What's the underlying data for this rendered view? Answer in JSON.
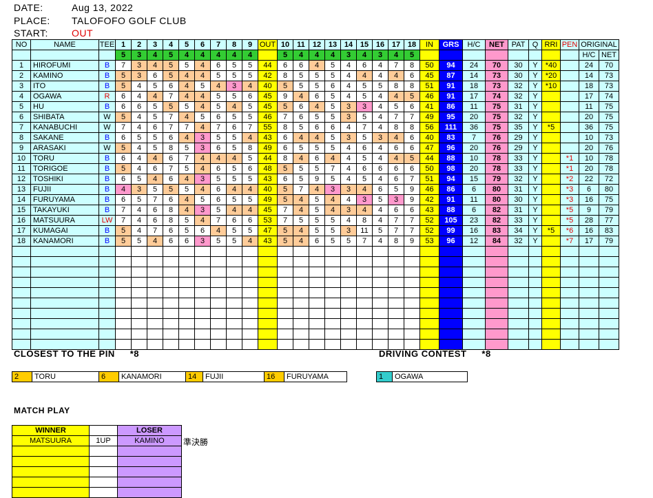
{
  "header": {
    "date_label": "DATE:",
    "date_value": "Aug 13, 2022",
    "place_label": "PLACE:",
    "place_value": "TALOFOFO GOLF CLUB",
    "start_label": "START:",
    "start_value": "OUT"
  },
  "colors": {
    "cyan": "#ccffff",
    "yellow": "#ffff00",
    "blue": "#0000ff",
    "pink": "#ff99cc",
    "green": "#33cc33",
    "orange": "#ffcc99"
  },
  "table": {
    "headers": {
      "no": "NO",
      "name": "NAME",
      "tee": "TEE",
      "holes": [
        "1",
        "2",
        "3",
        "4",
        "5",
        "6",
        "7",
        "8",
        "9",
        "OUT",
        "10",
        "11",
        "12",
        "13",
        "14",
        "15",
        "16",
        "17",
        "18",
        "IN"
      ],
      "grs": "GRS",
      "hc": "H/C",
      "net": "NET",
      "pat": "PAT",
      "q": "Q",
      "rri": "RRI",
      "pen": "PEN",
      "original": "ORIGINAL",
      "orig_hc": "H/C",
      "orig_net": "NET"
    },
    "par": [
      "5",
      "3",
      "4",
      "5",
      "4",
      "4",
      "4",
      "4",
      "4",
      "",
      "5",
      "4",
      "4",
      "4",
      "3",
      "4",
      "3",
      "4",
      "5",
      ""
    ],
    "rows": [
      {
        "no": "1",
        "name": "HIROFUMI",
        "tee": "B",
        "s": [
          "7",
          "3",
          "4",
          "5",
          "5",
          "4",
          "6",
          "5",
          "5",
          "44",
          "6",
          "6",
          "4",
          "5",
          "4",
          "6",
          "4",
          "7",
          "8",
          "50"
        ],
        "grs": "94",
        "hc": "24",
        "net": "70",
        "pat": "30",
        "q": "Y",
        "rri": "*40",
        "pen": "",
        "oh": "24",
        "on": "70"
      },
      {
        "no": "2",
        "name": "KAMINO",
        "tee": "B",
        "s": [
          "5",
          "3",
          "6",
          "5",
          "4",
          "4",
          "5",
          "5",
          "5",
          "42",
          "8",
          "5",
          "5",
          "5",
          "4",
          "4",
          "4",
          "4",
          "6",
          "45"
        ],
        "grs": "87",
        "hc": "14",
        "net": "73",
        "pat": "30",
        "q": "Y",
        "rri": "*20",
        "pen": "",
        "oh": "14",
        "on": "73"
      },
      {
        "no": "3",
        "name": "ITO",
        "tee": "B",
        "s": [
          "5",
          "4",
          "5",
          "6",
          "4",
          "5",
          "4",
          "3",
          "4",
          "40",
          "5",
          "5",
          "5",
          "6",
          "4",
          "5",
          "5",
          "8",
          "8",
          "51"
        ],
        "grs": "91",
        "hc": "18",
        "net": "73",
        "pat": "32",
        "q": "Y",
        "rri": "*10",
        "pen": "",
        "oh": "18",
        "on": "73"
      },
      {
        "no": "4",
        "name": "OGAWA",
        "tee": "R",
        "s": [
          "6",
          "4",
          "4",
          "7",
          "4",
          "4",
          "5",
          "5",
          "6",
          "45",
          "9",
          "4",
          "6",
          "5",
          "4",
          "5",
          "4",
          "4",
          "5",
          "46"
        ],
        "grs": "91",
        "hc": "17",
        "net": "74",
        "pat": "32",
        "q": "Y",
        "rri": "",
        "pen": "",
        "oh": "17",
        "on": "74"
      },
      {
        "no": "5",
        "name": "HU",
        "tee": "B",
        "s": [
          "6",
          "6",
          "5",
          "5",
          "5",
          "4",
          "5",
          "4",
          "5",
          "45",
          "5",
          "6",
          "4",
          "5",
          "3",
          "3",
          "4",
          "5",
          "6",
          "41"
        ],
        "grs": "86",
        "hc": "11",
        "net": "75",
        "pat": "31",
        "q": "Y",
        "rri": "",
        "pen": "",
        "oh": "11",
        "on": "75"
      },
      {
        "no": "6",
        "name": "SHIBATA",
        "tee": "W",
        "s": [
          "5",
          "4",
          "5",
          "7",
          "4",
          "5",
          "6",
          "5",
          "5",
          "46",
          "7",
          "6",
          "5",
          "5",
          "3",
          "5",
          "4",
          "7",
          "7",
          "49"
        ],
        "grs": "95",
        "hc": "20",
        "net": "75",
        "pat": "32",
        "q": "Y",
        "rri": "",
        "pen": "",
        "oh": "20",
        "on": "75"
      },
      {
        "no": "7",
        "name": "KANABUCHI",
        "tee": "W",
        "s": [
          "7",
          "4",
          "6",
          "7",
          "7",
          "4",
          "7",
          "6",
          "7",
          "55",
          "8",
          "5",
          "6",
          "6",
          "4",
          "7",
          "4",
          "8",
          "8",
          "56"
        ],
        "grs": "111",
        "hc": "36",
        "net": "75",
        "pat": "35",
        "q": "Y",
        "rri": "*5",
        "pen": "",
        "oh": "36",
        "on": "75"
      },
      {
        "no": "8",
        "name": "SAKANE",
        "tee": "B",
        "s": [
          "6",
          "5",
          "5",
          "6",
          "4",
          "3",
          "5",
          "5",
          "4",
          "43",
          "6",
          "4",
          "4",
          "5",
          "3",
          "5",
          "3",
          "4",
          "6",
          "40"
        ],
        "grs": "83",
        "hc": "7",
        "net": "76",
        "pat": "29",
        "q": "Y",
        "rri": "",
        "pen": "",
        "oh": "10",
        "on": "73"
      },
      {
        "no": "9",
        "name": "ARASAKI",
        "tee": "W",
        "s": [
          "5",
          "4",
          "5",
          "8",
          "5",
          "3",
          "6",
          "5",
          "8",
          "49",
          "6",
          "5",
          "5",
          "5",
          "4",
          "6",
          "4",
          "6",
          "6",
          "47"
        ],
        "grs": "96",
        "hc": "20",
        "net": "76",
        "pat": "29",
        "q": "Y",
        "rri": "",
        "pen": "",
        "oh": "20",
        "on": "76"
      },
      {
        "no": "10",
        "name": "TORU",
        "tee": "B",
        "s": [
          "6",
          "4",
          "4",
          "6",
          "7",
          "4",
          "4",
          "4",
          "5",
          "44",
          "8",
          "4",
          "6",
          "4",
          "4",
          "5",
          "4",
          "4",
          "5",
          "44"
        ],
        "grs": "88",
        "hc": "10",
        "net": "78",
        "pat": "33",
        "q": "Y",
        "rri": "",
        "pen": "*1",
        "oh": "10",
        "on": "78"
      },
      {
        "no": "11",
        "name": "TORIGOE",
        "tee": "B",
        "s": [
          "5",
          "4",
          "6",
          "7",
          "5",
          "4",
          "6",
          "5",
          "6",
          "48",
          "5",
          "5",
          "5",
          "7",
          "4",
          "6",
          "6",
          "6",
          "6",
          "50"
        ],
        "grs": "98",
        "hc": "20",
        "net": "78",
        "pat": "33",
        "q": "Y",
        "rri": "",
        "pen": "*1",
        "oh": "20",
        "on": "78"
      },
      {
        "no": "12",
        "name": "TOSHIKI",
        "tee": "B",
        "s": [
          "6",
          "5",
          "4",
          "6",
          "4",
          "3",
          "5",
          "5",
          "5",
          "43",
          "6",
          "5",
          "9",
          "5",
          "4",
          "5",
          "4",
          "6",
          "7",
          "51"
        ],
        "grs": "94",
        "hc": "15",
        "net": "79",
        "pat": "32",
        "q": "Y",
        "rri": "",
        "pen": "*2",
        "oh": "22",
        "on": "72"
      },
      {
        "no": "13",
        "name": "FUJII",
        "tee": "B",
        "s": [
          "4",
          "3",
          "5",
          "5",
          "5",
          "4",
          "6",
          "4",
          "4",
          "40",
          "5",
          "7",
          "4",
          "3",
          "3",
          "4",
          "6",
          "5",
          "9",
          "46"
        ],
        "grs": "86",
        "hc": "6",
        "net": "80",
        "pat": "31",
        "q": "Y",
        "rri": "",
        "pen": "*3",
        "oh": "6",
        "on": "80"
      },
      {
        "no": "14",
        "name": "FURUYAMA",
        "tee": "B",
        "s": [
          "6",
          "5",
          "7",
          "6",
          "4",
          "5",
          "6",
          "5",
          "5",
          "49",
          "5",
          "4",
          "5",
          "4",
          "4",
          "3",
          "5",
          "3",
          "9",
          "42"
        ],
        "grs": "91",
        "hc": "11",
        "net": "80",
        "pat": "30",
        "q": "Y",
        "rri": "",
        "pen": "*3",
        "oh": "16",
        "on": "75"
      },
      {
        "no": "15",
        "name": "TAKAYUKI",
        "tee": "B",
        "s": [
          "7",
          "4",
          "6",
          "8",
          "4",
          "3",
          "5",
          "4",
          "4",
          "45",
          "7",
          "4",
          "5",
          "4",
          "3",
          "4",
          "4",
          "6",
          "6",
          "43"
        ],
        "grs": "88",
        "hc": "6",
        "net": "82",
        "pat": "31",
        "q": "Y",
        "rri": "",
        "pen": "*5",
        "oh": "9",
        "on": "79"
      },
      {
        "no": "16",
        "name": "MATSUURA",
        "tee": "LW",
        "s": [
          "7",
          "4",
          "6",
          "8",
          "5",
          "4",
          "7",
          "6",
          "6",
          "53",
          "7",
          "5",
          "5",
          "5",
          "4",
          "8",
          "4",
          "7",
          "7",
          "52"
        ],
        "grs": "105",
        "hc": "23",
        "net": "82",
        "pat": "33",
        "q": "Y",
        "rri": "",
        "pen": "*5",
        "oh": "28",
        "on": "77"
      },
      {
        "no": "17",
        "name": "KUMAGAI",
        "tee": "B",
        "s": [
          "5",
          "4",
          "7",
          "6",
          "5",
          "6",
          "4",
          "5",
          "5",
          "47",
          "5",
          "4",
          "5",
          "5",
          "3",
          "11",
          "5",
          "7",
          "7",
          "52"
        ],
        "grs": "99",
        "hc": "16",
        "net": "83",
        "pat": "34",
        "q": "Y",
        "rri": "*5",
        "pen": "*6",
        "oh": "16",
        "on": "83"
      },
      {
        "no": "18",
        "name": "KANAMORI",
        "tee": "B",
        "s": [
          "5",
          "5",
          "4",
          "6",
          "6",
          "3",
          "5",
          "5",
          "4",
          "43",
          "5",
          "4",
          "6",
          "5",
          "5",
          "7",
          "4",
          "8",
          "9",
          "53"
        ],
        "grs": "96",
        "hc": "12",
        "net": "84",
        "pat": "32",
        "q": "Y",
        "rri": "",
        "pen": "*7",
        "oh": "17",
        "on": "79"
      }
    ]
  },
  "closest": {
    "title": "CLOSEST TO THE PIN",
    "note": "*8",
    "entries": [
      {
        "hole": "2",
        "name": "TORU"
      },
      {
        "hole": "6",
        "name": "KANAMORI"
      },
      {
        "hole": "14",
        "name": "FUJII"
      },
      {
        "hole": "16",
        "name": "FURUYAMA"
      }
    ]
  },
  "driving": {
    "title": "DRIVING CONTEST",
    "note": "*8",
    "entries": [
      {
        "hole": "1",
        "name": "OGAWA"
      }
    ]
  },
  "match": {
    "title": "MATCH PLAY",
    "winner_label": "WINNER",
    "loser_label": "LOSER",
    "rows": [
      {
        "winner": "MATSUURA",
        "margin": "1UP",
        "loser": "KAMINO",
        "note": "準決勝"
      }
    ]
  }
}
